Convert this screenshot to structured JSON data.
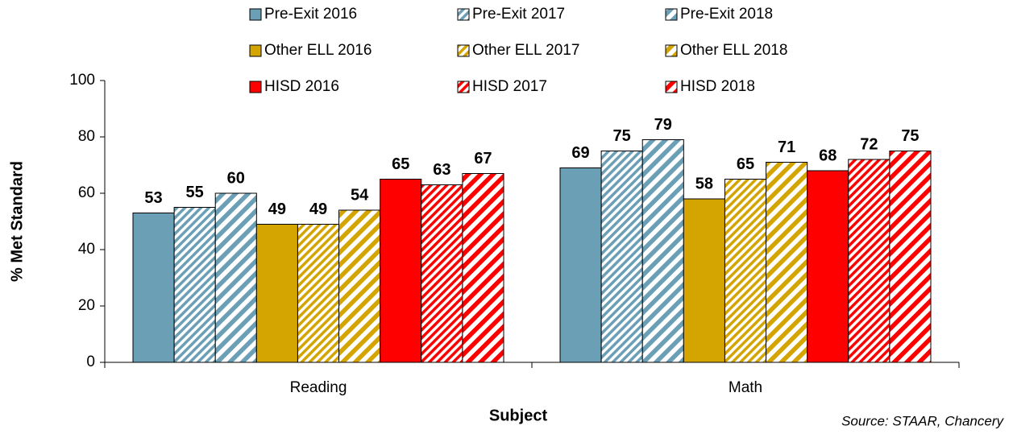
{
  "chart_data": {
    "type": "bar",
    "categories": [
      "Reading",
      "Math"
    ],
    "series": [
      {
        "name": "Pre-Exit 2016",
        "color": "#6a9fb5",
        "pattern": "solid",
        "values": [
          53,
          69
        ]
      },
      {
        "name": "Pre-Exit 2017",
        "color": "#6a9fb5",
        "pattern": "fine-diagonal",
        "values": [
          55,
          75
        ]
      },
      {
        "name": "Pre-Exit 2018",
        "color": "#6a9fb5",
        "pattern": "wide-diagonal",
        "values": [
          60,
          79
        ]
      },
      {
        "name": "Other ELL 2016",
        "color": "#d4a400",
        "pattern": "solid",
        "values": [
          49,
          58
        ]
      },
      {
        "name": "Other ELL 2017",
        "color": "#d4a400",
        "pattern": "fine-diagonal",
        "values": [
          49,
          65
        ]
      },
      {
        "name": "Other ELL 2018",
        "color": "#d4a400",
        "pattern": "wide-diagonal",
        "values": [
          54,
          71
        ]
      },
      {
        "name": "HISD 2016",
        "color": "#ff0000",
        "pattern": "solid",
        "values": [
          65,
          68
        ]
      },
      {
        "name": "HISD 2017",
        "color": "#ff0000",
        "pattern": "fine-diagonal",
        "values": [
          63,
          72
        ]
      },
      {
        "name": "HISD 2018",
        "color": "#ff0000",
        "pattern": "wide-diagonal",
        "values": [
          67,
          75
        ]
      }
    ],
    "xlabel": "Subject",
    "ylabel": "% Met Standard",
    "annotation": "Source: STAAR, Chancery",
    "ylim": [
      0,
      100
    ],
    "yticks": [
      0,
      20,
      40,
      60,
      80,
      100
    ],
    "grid": false,
    "legend": "top"
  }
}
